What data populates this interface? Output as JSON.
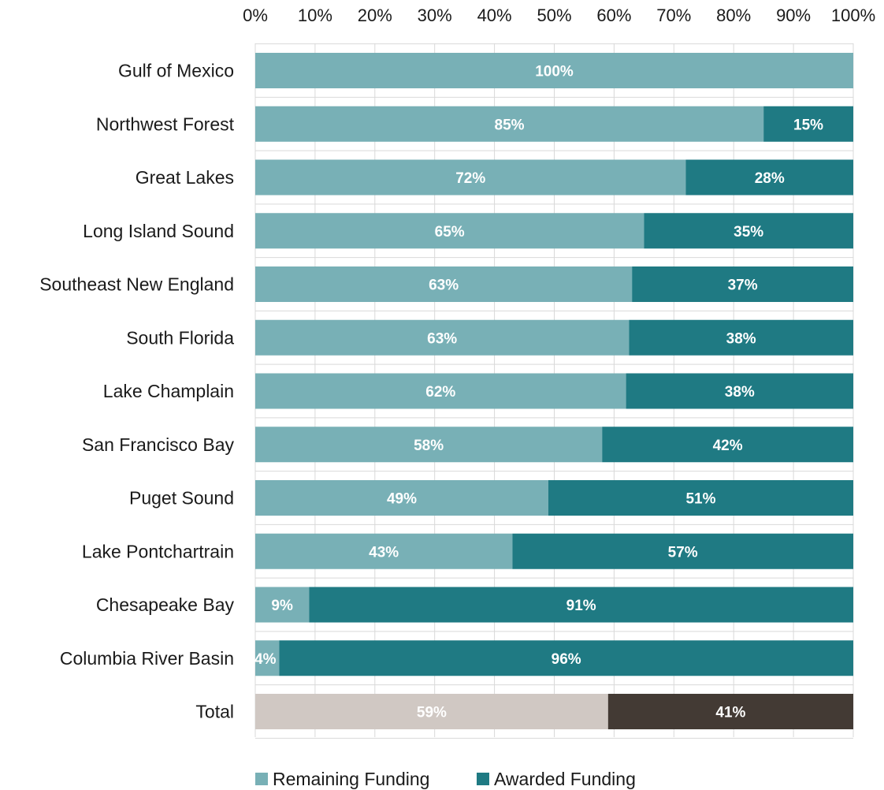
{
  "chart_data": {
    "type": "bar",
    "orientation": "horizontal",
    "stacked": true,
    "categories": [
      "Gulf of Mexico",
      "Northwest Forest",
      "Great Lakes",
      "Long Island Sound",
      "Southeast New England",
      "South Florida",
      "Lake Champlain",
      "San Francisco Bay",
      "Puget Sound",
      "Lake Pontchartrain",
      "Chesapeake Bay",
      "Columbia River Basin",
      "Total"
    ],
    "series": [
      {
        "name": "Remaining Funding",
        "color": "#78b0b6",
        "total_color": "#d0c8c3",
        "values": [
          100,
          85,
          72,
          65,
          63,
          62.5,
          62,
          58,
          49,
          43,
          9,
          4,
          59
        ],
        "labels": [
          "100%",
          "85%",
          "72%",
          "65%",
          "63%",
          "63%",
          "62%",
          "58%",
          "49%",
          "43%",
          "9%",
          "4%",
          "59%"
        ]
      },
      {
        "name": "Awarded Funding",
        "color": "#1f7a83",
        "total_color": "#433a34",
        "values": [
          0,
          15,
          28,
          35,
          37,
          37.5,
          38,
          42,
          51,
          57,
          91,
          96,
          41
        ],
        "labels": [
          "",
          "15%",
          "28%",
          "35%",
          "37%",
          "38%",
          "38%",
          "42%",
          "51%",
          "57%",
          "91%",
          "96%",
          "41%"
        ]
      }
    ],
    "x_axis": {
      "min": 0,
      "max": 100,
      "ticks": [
        "0%",
        "10%",
        "20%",
        "30%",
        "40%",
        "50%",
        "60%",
        "70%",
        "80%",
        "90%",
        "100%"
      ],
      "position": "top"
    },
    "grid": true,
    "legend": {
      "position": "bottom",
      "entries": [
        "Remaining Funding",
        "Awarded Funding"
      ]
    }
  }
}
